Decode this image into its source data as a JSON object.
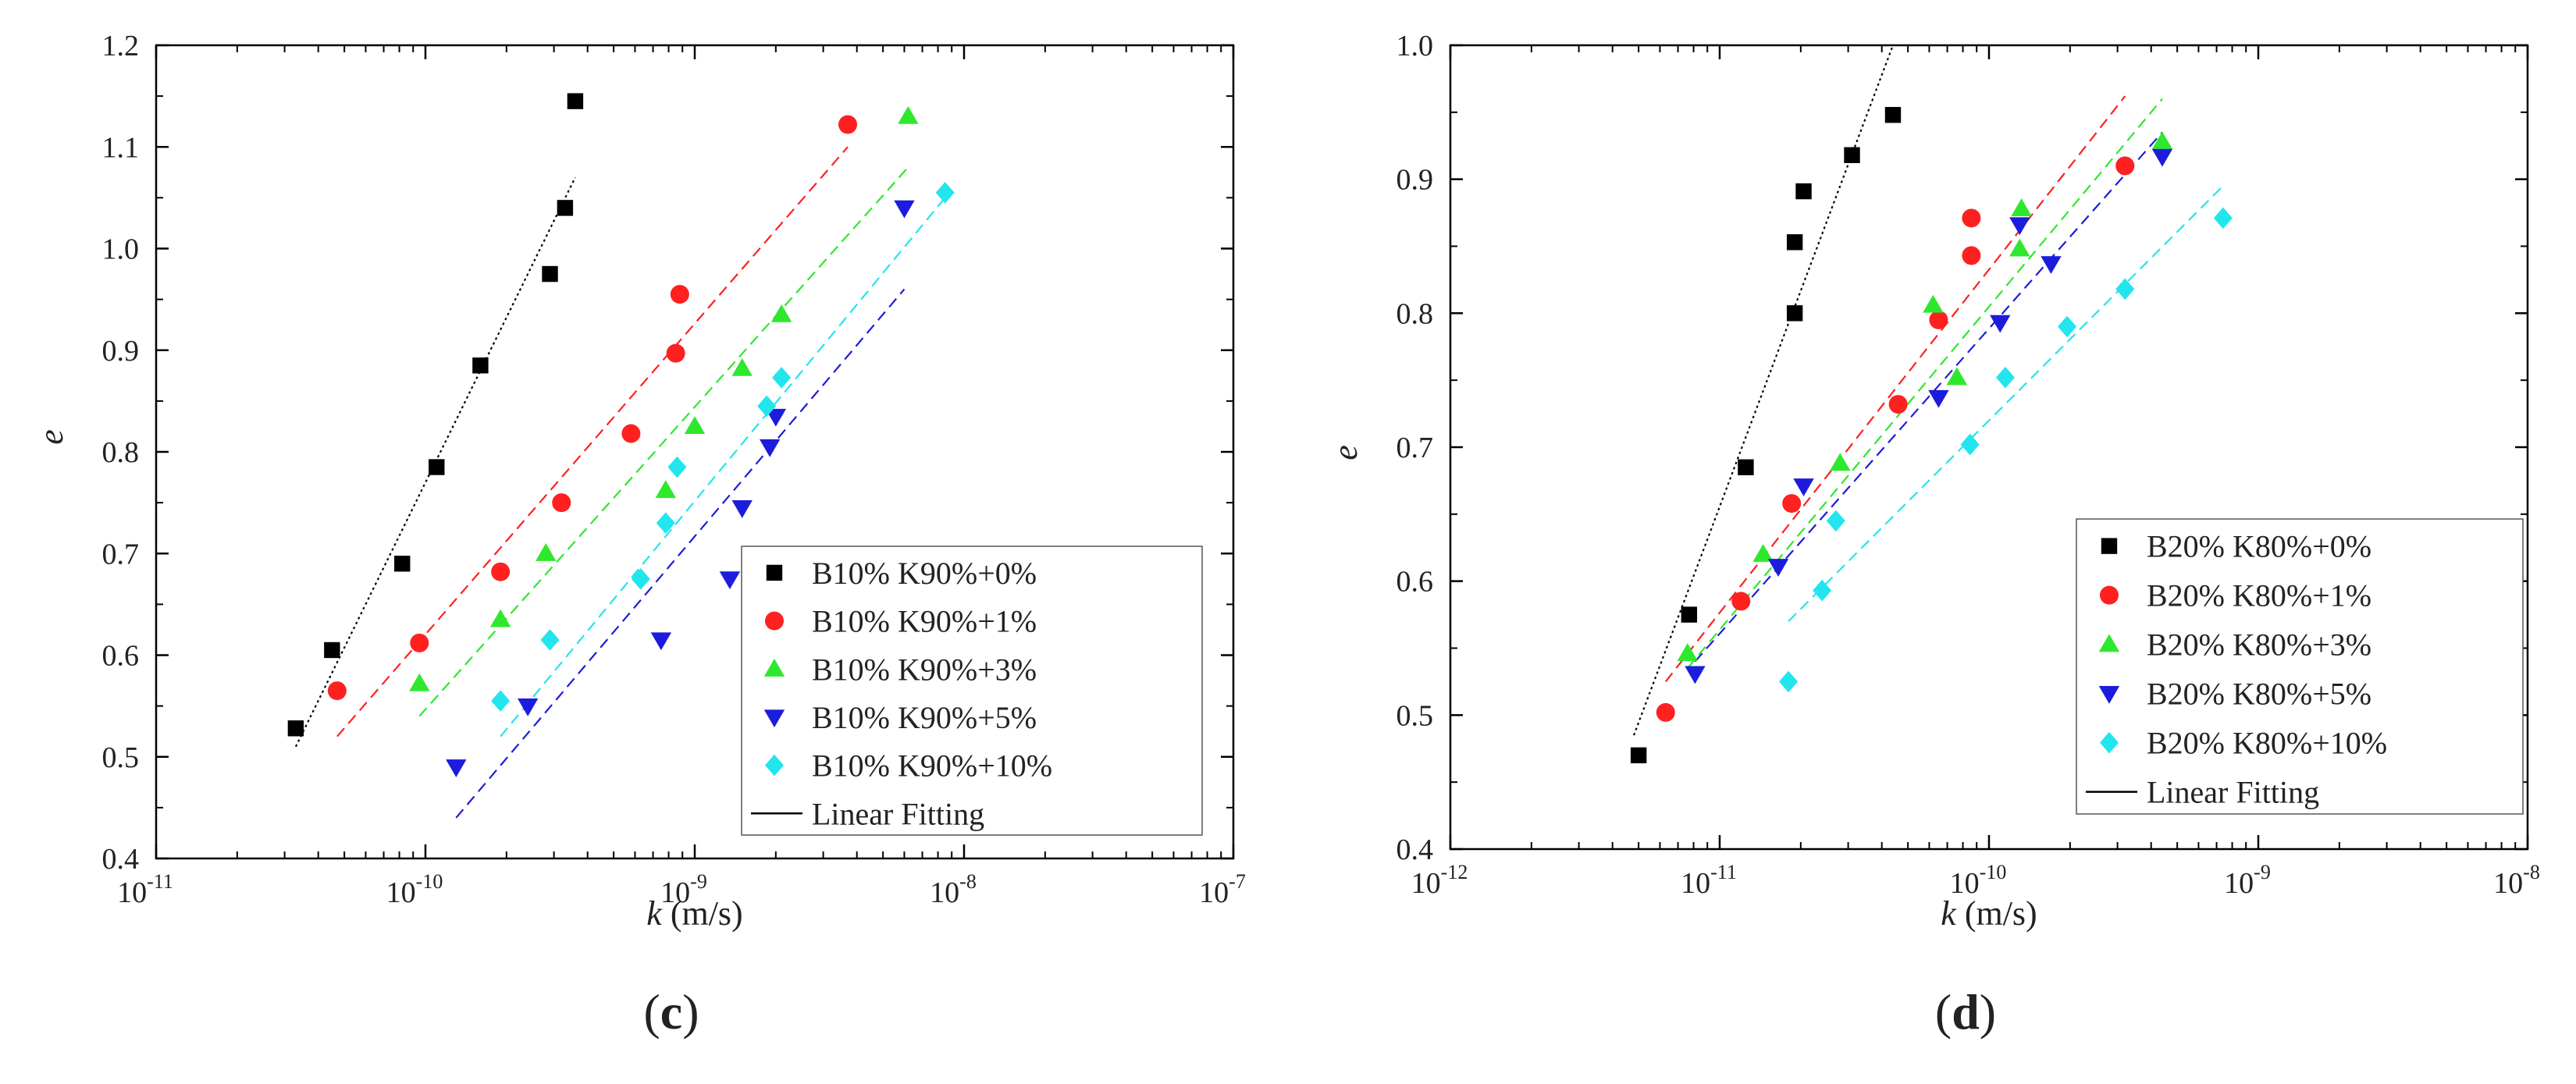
{
  "chart_data": [
    {
      "id": "c",
      "type": "scatter",
      "title": "",
      "xlabel_italic": "k",
      "xlabel_unit": " (m/s)",
      "ylabel": "e",
      "xscale": "log",
      "xlim": [
        1e-11,
        1e-07
      ],
      "ylim": [
        0.4,
        1.2
      ],
      "xticks": [
        {
          "value": 1e-11,
          "base": "10",
          "exp": "-11"
        },
        {
          "value": 1e-10,
          "base": "10",
          "exp": "-10"
        },
        {
          "value": 1e-09,
          "base": "10",
          "exp": "-9"
        },
        {
          "value": 1e-08,
          "base": "10",
          "exp": "-8"
        },
        {
          "value": 1e-07,
          "base": "10",
          "exp": "-7"
        }
      ],
      "yticks": [
        {
          "value": 0.4,
          "label": "0.4"
        },
        {
          "value": 0.5,
          "label": "0.5"
        },
        {
          "value": 0.6,
          "label": "0.6"
        },
        {
          "value": 0.7,
          "label": "0.7"
        },
        {
          "value": 0.8,
          "label": "0.8"
        },
        {
          "value": 0.9,
          "label": "0.9"
        },
        {
          "value": 1.0,
          "label": "1.0"
        },
        {
          "value": 1.1,
          "label": "1.1"
        },
        {
          "value": 1.2,
          "label": "1.2"
        }
      ],
      "legend_position": "bottom-right",
      "fit_label": "Linear Fitting",
      "fit_color": "#000000",
      "panel_label": "c",
      "series": [
        {
          "name": "B10% K90%+0%",
          "marker": "square",
          "color": "#000000",
          "points": [
            [
              3.3e-11,
              0.528
            ],
            [
              4.5e-11,
              0.605
            ],
            [
              8.2e-11,
              0.69
            ],
            [
              1.1e-10,
              0.785
            ],
            [
              1.6e-10,
              0.885
            ],
            [
              2.9e-10,
              0.975
            ],
            [
              3.3e-10,
              1.04
            ],
            [
              3.6e-10,
              1.145
            ]
          ],
          "fit": [
            [
              3.3e-11,
              0.51
            ],
            [
              3.6e-10,
              1.07
            ]
          ]
        },
        {
          "name": "B10% K90%+1%",
          "marker": "circle",
          "color": "#ff2020",
          "points": [
            [
              4.7e-11,
              0.565
            ],
            [
              9.5e-11,
              0.612
            ],
            [
              1.9e-10,
              0.682
            ],
            [
              3.2e-10,
              0.75
            ],
            [
              5.8e-10,
              0.818
            ],
            [
              8.5e-10,
              0.897
            ],
            [
              8.8e-10,
              0.955
            ],
            [
              3.7e-09,
              1.122
            ]
          ],
          "fit": [
            [
              4.7e-11,
              0.52
            ],
            [
              3.7e-09,
              1.1
            ]
          ]
        },
        {
          "name": "B10% K90%+3%",
          "marker": "triangle-up",
          "color": "#2ee82e",
          "points": [
            [
              9.5e-11,
              0.572
            ],
            [
              1.9e-10,
              0.635
            ],
            [
              2.8e-10,
              0.7
            ],
            [
              7.8e-10,
              0.762
            ],
            [
              1e-09,
              0.825
            ],
            [
              1.5e-09,
              0.882
            ],
            [
              2.1e-09,
              0.935
            ],
            [
              6.2e-09,
              1.13
            ]
          ],
          "fit": [
            [
              9.5e-11,
              0.54
            ],
            [
              6.2e-09,
              1.08
            ]
          ]
        },
        {
          "name": "B10% K90%+5%",
          "marker": "triangle-down",
          "color": "#1c1cdd",
          "points": [
            [
              1.3e-10,
              0.49
            ],
            [
              2.4e-10,
              0.55
            ],
            [
              7.5e-10,
              0.615
            ],
            [
              1.35e-09,
              0.675
            ],
            [
              1.5e-09,
              0.745
            ],
            [
              1.9e-09,
              0.805
            ],
            [
              2e-09,
              0.835
            ],
            [
              6e-09,
              1.04
            ]
          ],
          "fit": [
            [
              1.3e-10,
              0.44
            ],
            [
              6e-09,
              0.96
            ]
          ]
        },
        {
          "name": "B10% K90%+10%",
          "marker": "diamond",
          "color": "#22e5ee",
          "points": [
            [
              1.9e-10,
              0.555
            ],
            [
              2.9e-10,
              0.615
            ],
            [
              6.3e-10,
              0.675
            ],
            [
              7.8e-10,
              0.73
            ],
            [
              8.6e-10,
              0.785
            ],
            [
              1.85e-09,
              0.845
            ],
            [
              2.1e-09,
              0.873
            ],
            [
              8.5e-09,
              1.055
            ]
          ],
          "fit": [
            [
              1.9e-10,
              0.52
            ],
            [
              8.5e-09,
              1.05
            ]
          ]
        }
      ]
    },
    {
      "id": "d",
      "type": "scatter",
      "title": "",
      "xlabel_italic": "k",
      "xlabel_unit": " (m/s)",
      "ylabel": "e",
      "xscale": "log",
      "xlim": [
        1e-12,
        1e-08
      ],
      "ylim": [
        0.4,
        1.0
      ],
      "xticks": [
        {
          "value": 1e-12,
          "base": "10",
          "exp": "-12"
        },
        {
          "value": 1e-11,
          "base": "10",
          "exp": "-11"
        },
        {
          "value": 1e-10,
          "base": "10",
          "exp": "-10"
        },
        {
          "value": 1e-09,
          "base": "10",
          "exp": "-9"
        },
        {
          "value": 1e-08,
          "base": "10",
          "exp": "-8"
        }
      ],
      "yticks": [
        {
          "value": 0.4,
          "label": "0.4"
        },
        {
          "value": 0.5,
          "label": "0.5"
        },
        {
          "value": 0.6,
          "label": "0.6"
        },
        {
          "value": 0.7,
          "label": "0.7"
        },
        {
          "value": 0.8,
          "label": "0.8"
        },
        {
          "value": 0.9,
          "label": "0.9"
        },
        {
          "value": 1.0,
          "label": "1.0"
        }
      ],
      "legend_position": "bottom-right",
      "fit_label": "Linear Fitting",
      "fit_color": "#000000",
      "panel_label": "d",
      "series": [
        {
          "name": "B20% K80%+0%",
          "marker": "square",
          "color": "#000000",
          "points": [
            [
              5e-12,
              0.47
            ],
            [
              7.7e-12,
              0.575
            ],
            [
              1.25e-11,
              0.685
            ],
            [
              1.9e-11,
              0.8
            ],
            [
              1.9e-11,
              0.853
            ],
            [
              2.05e-11,
              0.891
            ],
            [
              3.1e-11,
              0.918
            ],
            [
              4.4e-11,
              0.948
            ]
          ],
          "fit": [
            [
              4.8e-12,
              0.485
            ],
            [
              4.4e-11,
              1.0
            ]
          ]
        },
        {
          "name": "B20% K80%+1%",
          "marker": "circle",
          "color": "#ff2020",
          "points": [
            [
              6.3e-12,
              0.502
            ],
            [
              1.2e-11,
              0.585
            ],
            [
              1.85e-11,
              0.658
            ],
            [
              4.6e-11,
              0.732
            ],
            [
              6.5e-11,
              0.795
            ],
            [
              8.6e-11,
              0.843
            ],
            [
              8.6e-11,
              0.871
            ],
            [
              3.2e-10,
              0.91
            ]
          ],
          "fit": [
            [
              6.3e-12,
              0.525
            ],
            [
              3.2e-10,
              0.962
            ]
          ]
        },
        {
          "name": "B20% K80%+3%",
          "marker": "triangle-up",
          "color": "#2ee82e",
          "points": [
            [
              7.6e-12,
              0.546
            ],
            [
              1.45e-11,
              0.62
            ],
            [
              2.8e-11,
              0.688
            ],
            [
              6.2e-11,
              0.806
            ],
            [
              7.6e-11,
              0.752
            ],
            [
              1.3e-10,
              0.848
            ],
            [
              1.32e-10,
              0.878
            ],
            [
              4.4e-10,
              0.928
            ]
          ],
          "fit": [
            [
              7.6e-12,
              0.535
            ],
            [
              4.4e-10,
              0.96
            ]
          ]
        },
        {
          "name": "B20% K80%+5%",
          "marker": "triangle-down",
          "color": "#1c1cdd",
          "points": [
            [
              8.1e-12,
              0.531
            ],
            [
              1.65e-11,
              0.611
            ],
            [
              2.05e-11,
              0.671
            ],
            [
              6.5e-11,
              0.737
            ],
            [
              1.1e-10,
              0.793
            ],
            [
              1.3e-10,
              0.866
            ],
            [
              1.7e-10,
              0.837
            ],
            [
              4.4e-10,
              0.917
            ]
          ],
          "fit": [
            [
              8.1e-12,
              0.54
            ],
            [
              4.4e-10,
              0.935
            ]
          ]
        },
        {
          "name": "B20% K80%+10%",
          "marker": "diamond",
          "color": "#22e5ee",
          "points": [
            [
              1.8e-11,
              0.525
            ],
            [
              2.4e-11,
              0.593
            ],
            [
              2.7e-11,
              0.645
            ],
            [
              8.5e-11,
              0.702
            ],
            [
              1.15e-10,
              0.752
            ],
            [
              1.95e-10,
              0.79
            ],
            [
              3.2e-10,
              0.818
            ],
            [
              7.4e-10,
              0.871
            ]
          ],
          "fit": [
            [
              1.8e-11,
              0.57
            ],
            [
              7.4e-10,
              0.895
            ]
          ]
        }
      ]
    }
  ]
}
